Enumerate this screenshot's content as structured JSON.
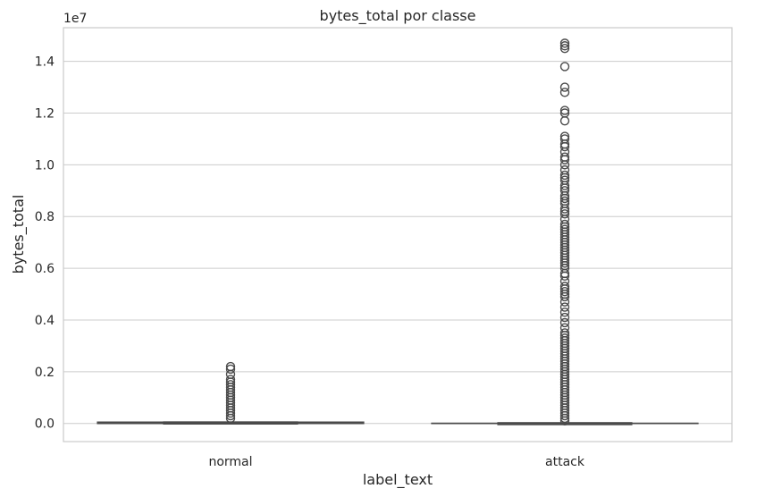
{
  "chart_data": {
    "type": "box",
    "title": "bytes_total por classe",
    "xlabel": "label_text",
    "ylabel": "bytes_total",
    "y_offset_label": "1e7",
    "y_scale_factor": 10000000,
    "ylim": [
      -0.07,
      1.53
    ],
    "yticks": [
      0.0,
      0.2,
      0.4,
      0.6,
      0.8,
      1.0,
      1.2,
      1.4
    ],
    "ytick_labels": [
      "0.0",
      "0.2",
      "0.4",
      "0.6",
      "0.8",
      "1.0",
      "1.2",
      "1.4"
    ],
    "grid": "horizontal",
    "categories": [
      "normal",
      "attack"
    ],
    "series": [
      {
        "category": "normal",
        "color": "#3a76af",
        "q1": 0.0,
        "median": 0.002,
        "q3": 0.004,
        "whisker_low": 0.0,
        "whisker_high": 0.005,
        "outliers": [
          0.02,
          0.03,
          0.04,
          0.05,
          0.06,
          0.07,
          0.08,
          0.09,
          0.1,
          0.11,
          0.12,
          0.13,
          0.14,
          0.15,
          0.16,
          0.17,
          0.19,
          0.21,
          0.22
        ]
      },
      {
        "category": "attack",
        "color": "#3a76af",
        "q1": 0.0,
        "median": 0.0,
        "q3": 0.001,
        "whisker_low": 0.0,
        "whisker_high": 0.001,
        "outliers": [
          0.01,
          0.02,
          0.03,
          0.04,
          0.05,
          0.06,
          0.07,
          0.08,
          0.09,
          0.1,
          0.11,
          0.12,
          0.13,
          0.14,
          0.15,
          0.16,
          0.17,
          0.18,
          0.19,
          0.2,
          0.21,
          0.22,
          0.23,
          0.24,
          0.25,
          0.26,
          0.27,
          0.28,
          0.29,
          0.3,
          0.31,
          0.32,
          0.33,
          0.34,
          0.35,
          0.37,
          0.39,
          0.41,
          0.43,
          0.45,
          0.47,
          0.49,
          0.5,
          0.51,
          0.52,
          0.53,
          0.55,
          0.57,
          0.58,
          0.6,
          0.61,
          0.62,
          0.63,
          0.64,
          0.65,
          0.66,
          0.67,
          0.68,
          0.69,
          0.7,
          0.71,
          0.72,
          0.73,
          0.74,
          0.75,
          0.76,
          0.77,
          0.79,
          0.81,
          0.82,
          0.83,
          0.85,
          0.86,
          0.87,
          0.88,
          0.9,
          0.91,
          0.92,
          0.94,
          0.95,
          0.96,
          0.98,
          1.0,
          1.02,
          1.03,
          1.05,
          1.07,
          1.08,
          1.1,
          1.11,
          1.17,
          1.2,
          1.21,
          1.28,
          1.3,
          1.38,
          1.45,
          1.46,
          1.47
        ]
      }
    ]
  }
}
